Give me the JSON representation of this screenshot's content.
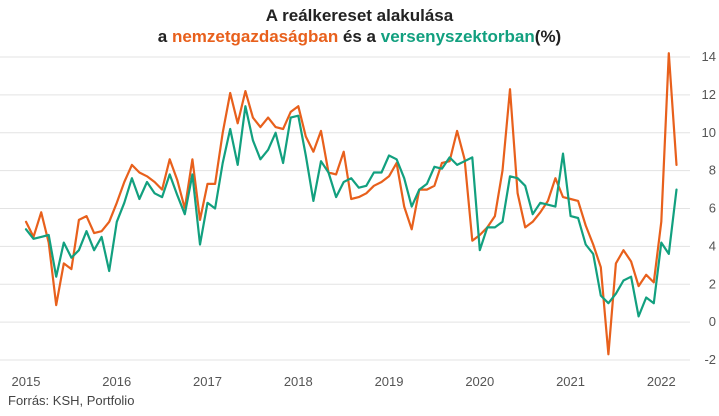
{
  "chart_data": {
    "type": "line",
    "title_line1": "A reálkereset alakulása",
    "title_line2": {
      "prefix": "a ",
      "series1": "nemzetgazdaságban",
      "middle": " és a ",
      "series2": "versenyszektorban",
      "suffix": "(%)"
    },
    "source": "Forrás: KSH, Portfolio",
    "ylim": [
      -2,
      14
    ],
    "yticks": [
      -2,
      0,
      2,
      4,
      6,
      8,
      10,
      12,
      14
    ],
    "xlim": [
      2015.0,
      2022.25
    ],
    "xticks": [
      2015,
      2016,
      2017,
      2018,
      2019,
      2020,
      2021,
      2022
    ],
    "grid": "horizontal",
    "y_axis_side": "right",
    "series": [
      {
        "name": "nemzetgazdaságban",
        "color": "#e8601c",
        "x": [
          2015.0,
          2015.083,
          2015.167,
          2015.25,
          2015.333,
          2015.417,
          2015.5,
          2015.583,
          2015.667,
          2015.75,
          2015.833,
          2015.917,
          2016.0,
          2016.083,
          2016.167,
          2016.25,
          2016.333,
          2016.417,
          2016.5,
          2016.583,
          2016.667,
          2016.75,
          2016.833,
          2016.917,
          2017.0,
          2017.083,
          2017.167,
          2017.25,
          2017.333,
          2017.417,
          2017.5,
          2017.583,
          2017.667,
          2017.75,
          2017.833,
          2017.917,
          2018.0,
          2018.083,
          2018.167,
          2018.25,
          2018.333,
          2018.417,
          2018.5,
          2018.583,
          2018.667,
          2018.75,
          2018.833,
          2018.917,
          2019.0,
          2019.083,
          2019.167,
          2019.25,
          2019.333,
          2019.417,
          2019.5,
          2019.583,
          2019.667,
          2019.75,
          2019.833,
          2019.917,
          2020.0,
          2020.083,
          2020.167,
          2020.25,
          2020.333,
          2020.417,
          2020.5,
          2020.583,
          2020.667,
          2020.75,
          2020.833,
          2020.917,
          2021.0,
          2021.083,
          2021.167,
          2021.25,
          2021.333,
          2021.417,
          2021.5,
          2021.583,
          2021.667,
          2021.75,
          2021.833,
          2021.917,
          2022.0,
          2022.083,
          2022.167
        ],
        "values": [
          5.3,
          4.5,
          5.8,
          4.2,
          0.9,
          3.1,
          2.8,
          5.4,
          5.6,
          4.7,
          4.8,
          5.3,
          6.3,
          7.4,
          8.3,
          7.9,
          7.7,
          7.4,
          7.0,
          8.6,
          7.5,
          6.0,
          8.6,
          5.4,
          7.3,
          7.3,
          10.0,
          12.1,
          10.5,
          12.2,
          10.8,
          10.3,
          10.8,
          10.3,
          10.2,
          11.1,
          11.4,
          9.8,
          9.0,
          10.1,
          7.9,
          7.8,
          9.0,
          6.5,
          6.6,
          6.8,
          7.2,
          7.4,
          7.7,
          8.4,
          6.1,
          4.9,
          7.0,
          7.0,
          7.2,
          8.4,
          8.5,
          10.1,
          8.6,
          4.3,
          4.6,
          5.0,
          5.6,
          8.0,
          12.3,
          6.8,
          5.0,
          5.3,
          5.8,
          6.4,
          7.6,
          6.6,
          6.5,
          6.4,
          5.1,
          4.1,
          2.9,
          -1.7,
          3.1,
          3.8,
          3.2,
          1.9,
          2.5,
          2.1,
          5.3,
          14.2,
          8.3
        ]
      },
      {
        "name": "versenyszektorban",
        "color": "#12a07f",
        "x": [
          2015.0,
          2015.083,
          2015.167,
          2015.25,
          2015.333,
          2015.417,
          2015.5,
          2015.583,
          2015.667,
          2015.75,
          2015.833,
          2015.917,
          2016.0,
          2016.083,
          2016.167,
          2016.25,
          2016.333,
          2016.417,
          2016.5,
          2016.583,
          2016.667,
          2016.75,
          2016.833,
          2016.917,
          2017.0,
          2017.083,
          2017.167,
          2017.25,
          2017.333,
          2017.417,
          2017.5,
          2017.583,
          2017.667,
          2017.75,
          2017.833,
          2017.917,
          2018.0,
          2018.083,
          2018.167,
          2018.25,
          2018.333,
          2018.417,
          2018.5,
          2018.583,
          2018.667,
          2018.75,
          2018.833,
          2018.917,
          2019.0,
          2019.083,
          2019.167,
          2019.25,
          2019.333,
          2019.417,
          2019.5,
          2019.583,
          2019.667,
          2019.75,
          2019.833,
          2019.917,
          2020.0,
          2020.083,
          2020.167,
          2020.25,
          2020.333,
          2020.417,
          2020.5,
          2020.583,
          2020.667,
          2020.75,
          2020.833,
          2020.917,
          2021.0,
          2021.083,
          2021.167,
          2021.25,
          2021.333,
          2021.417,
          2021.5,
          2021.583,
          2021.667,
          2021.75,
          2021.833,
          2021.917,
          2022.0,
          2022.083,
          2022.167
        ],
        "values": [
          4.9,
          4.4,
          4.5,
          4.6,
          2.4,
          4.2,
          3.4,
          3.8,
          4.8,
          3.8,
          4.5,
          2.7,
          5.3,
          6.3,
          7.6,
          6.5,
          7.4,
          6.8,
          6.6,
          7.8,
          6.7,
          5.7,
          7.8,
          4.1,
          6.3,
          6.0,
          8.4,
          10.2,
          8.3,
          11.4,
          9.6,
          8.6,
          9.1,
          10.0,
          8.4,
          10.8,
          10.9,
          8.8,
          6.4,
          8.5,
          7.9,
          6.6,
          7.4,
          7.6,
          7.1,
          7.2,
          7.9,
          7.9,
          8.8,
          8.6,
          7.6,
          6.1,
          7.0,
          7.3,
          8.2,
          8.1,
          8.7,
          8.3,
          8.5,
          8.7,
          3.8,
          5.0,
          5.0,
          5.3,
          7.7,
          7.6,
          7.2,
          5.7,
          6.3,
          6.2,
          6.1,
          8.9,
          5.6,
          5.5,
          4.1,
          3.6,
          1.4,
          1.0,
          1.5,
          2.2,
          2.4,
          0.3,
          1.3,
          1.0,
          4.2,
          3.6,
          7.0
        ]
      }
    ]
  }
}
